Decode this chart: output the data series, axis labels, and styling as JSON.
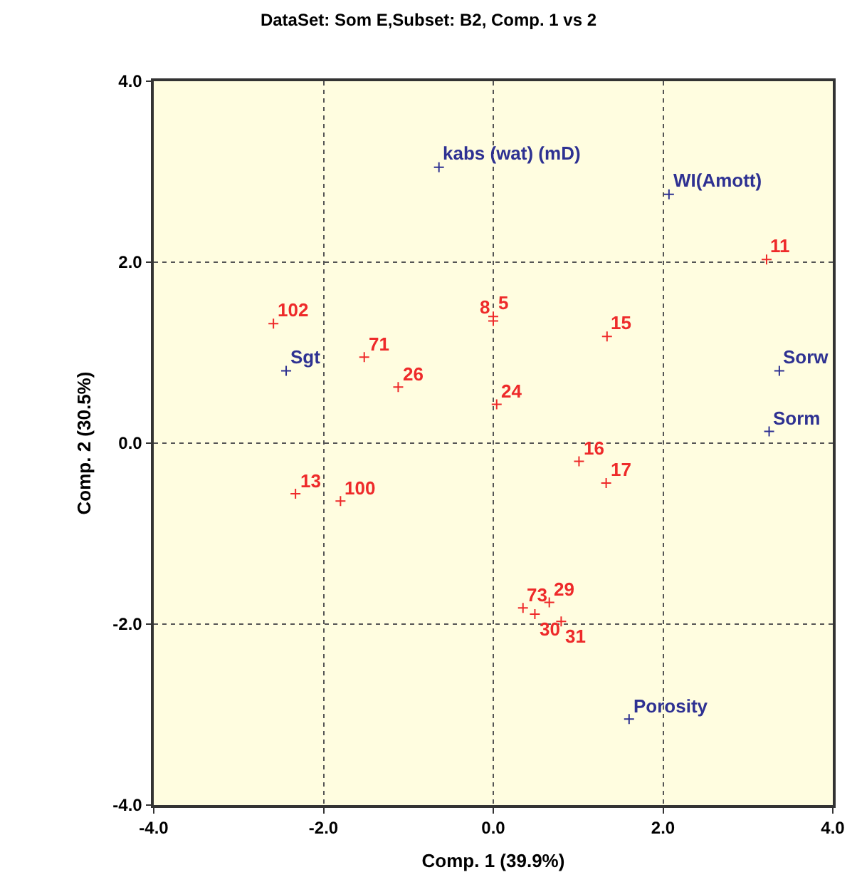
{
  "chart_data": {
    "type": "scatter",
    "title": "DataSet: Som E,Subset: B2, Comp. 1 vs 2",
    "xlabel": "Comp. 1 (39.9%)",
    "ylabel": "Comp. 2 (30.5%)",
    "xlim": [
      -4,
      4
    ],
    "ylim": [
      -4,
      4
    ],
    "xticks": [
      {
        "value": -4,
        "label": "-4.0"
      },
      {
        "value": -2,
        "label": "-2.0"
      },
      {
        "value": 0,
        "label": "0.0"
      },
      {
        "value": 2,
        "label": "2.0"
      },
      {
        "value": 4,
        "label": "4.0"
      }
    ],
    "yticks": [
      {
        "value": -4,
        "label": "-4.0"
      },
      {
        "value": -2,
        "label": "-2.0"
      },
      {
        "value": 0,
        "label": "0.0"
      },
      {
        "value": 2,
        "label": "2.0"
      },
      {
        "value": 4,
        "label": "4.0"
      }
    ],
    "grid": true,
    "marker": "cross",
    "series": [
      {
        "color": "#2e3192",
        "x": [
          -0.64,
          2.07,
          3.37,
          3.25,
          -2.44,
          1.6
        ],
        "values": [
          3.05,
          2.75,
          0.8,
          0.13,
          0.8,
          -3.05
        ]
      },
      {
        "color": "#ee2a2a",
        "x": [
          3.22,
          1.34,
          1.01,
          1.33,
          0.04,
          0.0,
          0.0,
          -2.59,
          -1.52,
          -1.12,
          -2.33,
          -1.8,
          0.35,
          0.49,
          0.66,
          0.8
        ],
        "values": [
          2.03,
          1.18,
          -0.2,
          -0.44,
          0.43,
          1.4,
          1.35,
          1.32,
          0.95,
          0.62,
          -0.56,
          -0.64,
          -1.82,
          -1.89,
          -1.76,
          -1.97
        ]
      }
    ],
    "annotations": [
      {
        "text": "kabs (wat) (mD)",
        "x": -0.64,
        "y": 3.05
      },
      {
        "text": "WI(Amott)",
        "x": 2.07,
        "y": 2.75
      },
      {
        "text": "Sorw",
        "x": 3.37,
        "y": 0.8
      },
      {
        "text": "Sorm",
        "x": 3.25,
        "y": 0.13
      },
      {
        "text": "Sgt",
        "x": -2.44,
        "y": 0.8
      },
      {
        "text": "Porosity",
        "x": 1.6,
        "y": -3.05
      },
      {
        "text": "11",
        "x": 3.22,
        "y": 2.03
      },
      {
        "text": "15",
        "x": 1.34,
        "y": 1.18
      },
      {
        "text": "16",
        "x": 1.01,
        "y": -0.2
      },
      {
        "text": "17",
        "x": 1.33,
        "y": -0.44
      },
      {
        "text": "24",
        "x": 0.04,
        "y": 0.43
      },
      {
        "text": "5",
        "x": 0.0,
        "y": 1.4
      },
      {
        "text": "8",
        "x": 0.0,
        "y": 1.35
      },
      {
        "text": "102",
        "x": -2.59,
        "y": 1.32
      },
      {
        "text": "71",
        "x": -1.52,
        "y": 0.95
      },
      {
        "text": "26",
        "x": -1.12,
        "y": 0.62
      },
      {
        "text": "13",
        "x": -2.33,
        "y": -0.56
      },
      {
        "text": "100",
        "x": -1.8,
        "y": -0.64
      },
      {
        "text": "73",
        "x": 0.35,
        "y": -1.82
      },
      {
        "text": "30",
        "x": 0.49,
        "y": -1.89
      },
      {
        "text": "29",
        "x": 0.66,
        "y": -1.76
      },
      {
        "text": "31",
        "x": 0.8,
        "y": -1.97
      }
    ]
  }
}
